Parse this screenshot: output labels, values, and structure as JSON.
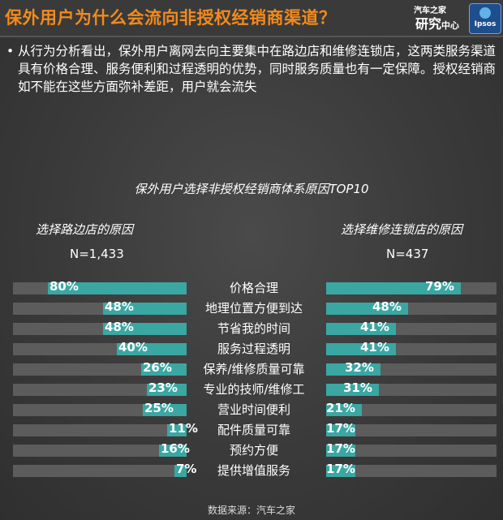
{
  "header": {
    "title": "保外用户为什么会流向非授权经销商渠道？",
    "brand_top": "汽车之家",
    "brand_bottom": "研究",
    "brand_bottom_small": "中心",
    "ipsos": "Ipsos"
  },
  "bullet": "从行为分析看出，保外用户离网去向主要集中在路边店和维修连锁店，这两类服务渠道具有价格合理、服务便利和过程透明的优势，同时服务质量也有一定保障。授权经销商如不能在这些方面弥补差距，用户就会流失",
  "chart_data": {
    "type": "bar",
    "title": "保外用户选择非授权经销商体系原因TOP10",
    "categories": [
      "价格合理",
      "地理位置方便到达",
      "节省我的时间",
      "服务过程透明",
      "保养/维修质量可靠",
      "专业的技师/维修工",
      "营业时间便利",
      "配件质量可靠",
      "预约方便",
      "提供增值服务"
    ],
    "series": [
      {
        "name": "选择路边店的原因",
        "n": "N=1,433",
        "values": [
          80,
          48,
          48,
          40,
          26,
          23,
          25,
          11,
          16,
          7
        ],
        "labels": [
          "80%",
          "48%",
          "48%",
          "40%",
          "26%",
          "23%",
          "25%",
          "11%",
          "16%",
          "7%"
        ]
      },
      {
        "name": "选择维修连锁店的原因",
        "n": "N=437",
        "values": [
          79,
          48,
          41,
          41,
          32,
          31,
          21,
          17,
          17,
          17
        ],
        "labels": [
          "79%",
          "48%",
          "41%",
          "41%",
          "32%",
          "31%",
          "21%",
          "17%",
          "17%",
          "17%"
        ]
      }
    ],
    "ylim": [
      0,
      100
    ],
    "colors": {
      "fill": "#3aa7a3",
      "track": "#5c5c5c"
    }
  },
  "footer": {
    "source": "数据来源：汽车之家"
  }
}
